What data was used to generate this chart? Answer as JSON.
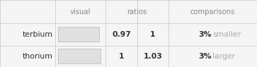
{
  "rows": [
    "terbium",
    "thorium"
  ],
  "ratios_left": [
    "0.97",
    "1"
  ],
  "ratios_right": [
    "1",
    "1.03"
  ],
  "comparisons_pct": [
    "3%",
    "3%"
  ],
  "comparisons_word": [
    "smaller",
    "larger"
  ],
  "bar_values": [
    0.97,
    1.0
  ],
  "bar_max": 1.03,
  "col_headers": [
    "visual",
    "ratios",
    "comparisons"
  ],
  "bar_color": "#e0e0e0",
  "bar_edge_color": "#b8b8b8",
  "header_text_color": "#888888",
  "row_label_color": "#333333",
  "number_color": "#333333",
  "pct_color": "#333333",
  "word_color": "#aaaaaa",
  "grid_color": "#cccccc",
  "bg_color": "#f5f5f5",
  "col_bounds": [
    0.0,
    0.215,
    0.41,
    0.535,
    0.655,
    1.0
  ],
  "row_bounds": [
    1.0,
    0.65,
    0.32,
    0.0
  ],
  "header_fontsize": 7.2,
  "data_fontsize": 7.8
}
